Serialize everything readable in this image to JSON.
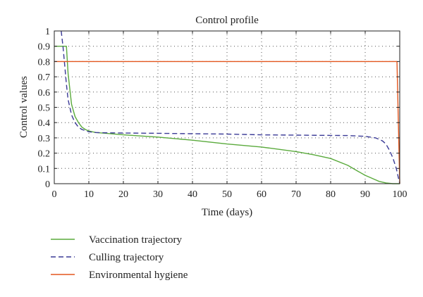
{
  "chart_data": {
    "type": "line",
    "title": "Control profile",
    "xlabel": "Time (days)",
    "ylabel": "Control values",
    "xlim": [
      0,
      100
    ],
    "ylim": [
      0,
      1
    ],
    "xticks": [
      0,
      10,
      20,
      30,
      40,
      50,
      60,
      70,
      80,
      90,
      100
    ],
    "yticks": [
      0,
      0.1,
      0.2,
      0.3,
      0.4,
      0.5,
      0.6,
      0.7,
      0.8,
      0.9,
      1
    ],
    "grid": true,
    "legend_position": "below",
    "series": [
      {
        "name": "Vaccination trajectory",
        "color": "#5aaa3c",
        "dash": "solid",
        "x": [
          0,
          3.5,
          4,
          5,
          6,
          7,
          8,
          9,
          10,
          12,
          15,
          20,
          30,
          40,
          50,
          60,
          70,
          75,
          80,
          85,
          88,
          90,
          92,
          94,
          96,
          98,
          100
        ],
        "y": [
          0.9,
          0.9,
          0.72,
          0.52,
          0.44,
          0.4,
          0.37,
          0.355,
          0.345,
          0.335,
          0.33,
          0.32,
          0.305,
          0.285,
          0.26,
          0.24,
          0.21,
          0.19,
          0.165,
          0.12,
          0.08,
          0.055,
          0.035,
          0.015,
          0.005,
          0.0,
          0.0
        ]
      },
      {
        "name": "Culling trajectory",
        "color": "#3a3a96",
        "dash": "dashed",
        "x": [
          2,
          2.5,
          3,
          3.5,
          4,
          5,
          6,
          7,
          8,
          10,
          12,
          15,
          20,
          30,
          40,
          50,
          60,
          70,
          80,
          85,
          90,
          93,
          95,
          96,
          97,
          98,
          99,
          100
        ],
        "y": [
          1.0,
          0.9,
          0.78,
          0.65,
          0.55,
          0.45,
          0.4,
          0.37,
          0.355,
          0.34,
          0.335,
          0.333,
          0.332,
          0.33,
          0.327,
          0.325,
          0.32,
          0.318,
          0.316,
          0.315,
          0.31,
          0.3,
          0.28,
          0.26,
          0.22,
          0.17,
          0.1,
          0.0
        ]
      },
      {
        "name": "Environmental hygiene",
        "color": "#e3561f",
        "dash": "solid",
        "x": [
          0,
          99.2,
          100
        ],
        "y": [
          0.8,
          0.8,
          0.0
        ]
      }
    ]
  }
}
